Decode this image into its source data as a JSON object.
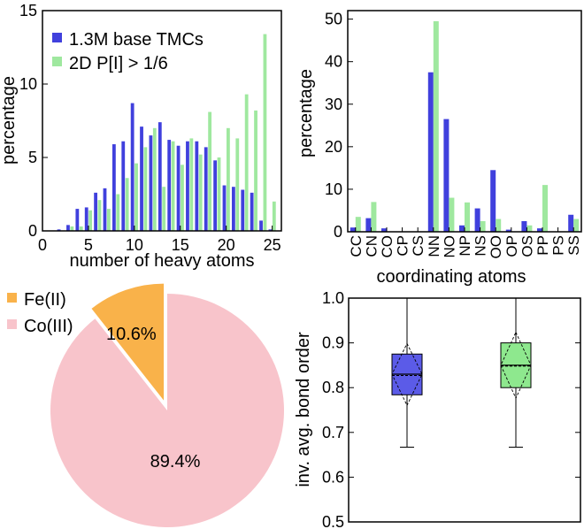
{
  "chart_data": [
    {
      "type": "bar",
      "x": [
        2,
        3,
        4,
        5,
        6,
        7,
        8,
        9,
        10,
        11,
        12,
        13,
        14,
        15,
        16,
        17,
        18,
        19,
        20,
        21,
        22,
        23,
        24,
        25
      ],
      "series": [
        {
          "name": "1.3M base TMCs",
          "values": [
            0.1,
            0.4,
            1.5,
            1.6,
            2.6,
            2.9,
            5.9,
            6.1,
            8.7,
            7.1,
            6.5,
            7.4,
            6.2,
            5.8,
            6.1,
            6.1,
            5.7,
            4.8,
            3.1,
            3.0,
            2.8,
            2.6,
            0.7,
            0.1
          ]
        },
        {
          "name": "2D P[I] > 1/6",
          "values": [
            0.0,
            0.3,
            0.3,
            1.4,
            2.1,
            1.5,
            2.5,
            3.6,
            4.6,
            5.7,
            7.0,
            3.0,
            6.1,
            4.5,
            6.3,
            5.2,
            8.1,
            5.0,
            7.0,
            6.3,
            9.3,
            8.2,
            13.4,
            2.0
          ]
        }
      ],
      "xlabel": "number of heavy atoms",
      "ylabel": "percentage",
      "xlim": [
        0,
        26
      ],
      "ylim": [
        0,
        15
      ],
      "xticks": [
        0,
        5,
        10,
        15,
        20,
        25
      ],
      "yticks": [
        0,
        5,
        10,
        15
      ],
      "legend_placement": "top-left",
      "colors": {
        "base": "#4040dd",
        "filtered": "#9fe89f"
      }
    },
    {
      "type": "bar",
      "categories": [
        "CC",
        "CN",
        "CO",
        "CP",
        "CS",
        "NN",
        "NO",
        "NP",
        "NS",
        "OO",
        "OP",
        "OS",
        "PP",
        "PS",
        "SS"
      ],
      "series": [
        {
          "name": "1.3M base TMCs",
          "values": [
            1.0,
            3.2,
            0.8,
            0.0,
            0.0,
            37.5,
            26.5,
            1.5,
            5.5,
            14.5,
            0.5,
            2.5,
            0.8,
            0.0,
            4.0
          ]
        },
        {
          "name": "2D P[I] > 1/6",
          "values": [
            3.5,
            7.0,
            0.0,
            0.0,
            0.0,
            49.5,
            8.0,
            6.9,
            2.5,
            3.0,
            0.0,
            1.5,
            11.0,
            0.0,
            3.0
          ]
        }
      ],
      "xlabel": "coordinating atoms",
      "ylabel": "percentage",
      "ylim": [
        0,
        52
      ],
      "yticks": [
        0,
        10,
        20,
        30,
        40,
        50
      ]
    },
    {
      "type": "pie",
      "labels": [
        "Fe(II)",
        "Co(III)"
      ],
      "values": [
        10.6,
        89.4
      ],
      "value_labels": [
        "10.6%",
        "89.4%"
      ],
      "colors": [
        "#f9b24a",
        "#f8c4cb"
      ],
      "exploded": "Fe(II)",
      "legend_placement": "top-left"
    },
    {
      "type": "box",
      "groups": [
        {
          "name": "1.3M base TMCs",
          "min": 0.667,
          "q1": 0.784,
          "median": 0.83,
          "mean": 0.827,
          "q3": 0.875,
          "max": 1.0,
          "color": "#5b5be8"
        },
        {
          "name": "2D P[I] > 1/6",
          "min": 0.667,
          "q1": 0.8,
          "median": 0.85,
          "mean": 0.848,
          "q3": 0.9,
          "max": 1.0,
          "color": "#8ee88e"
        }
      ],
      "ylabel": "inv. avg. bond order",
      "ylim": [
        0.5,
        1.0
      ],
      "yticks": [
        "0.5",
        "0.6",
        "0.7",
        "0.8",
        "0.9",
        "1.0"
      ]
    }
  ]
}
